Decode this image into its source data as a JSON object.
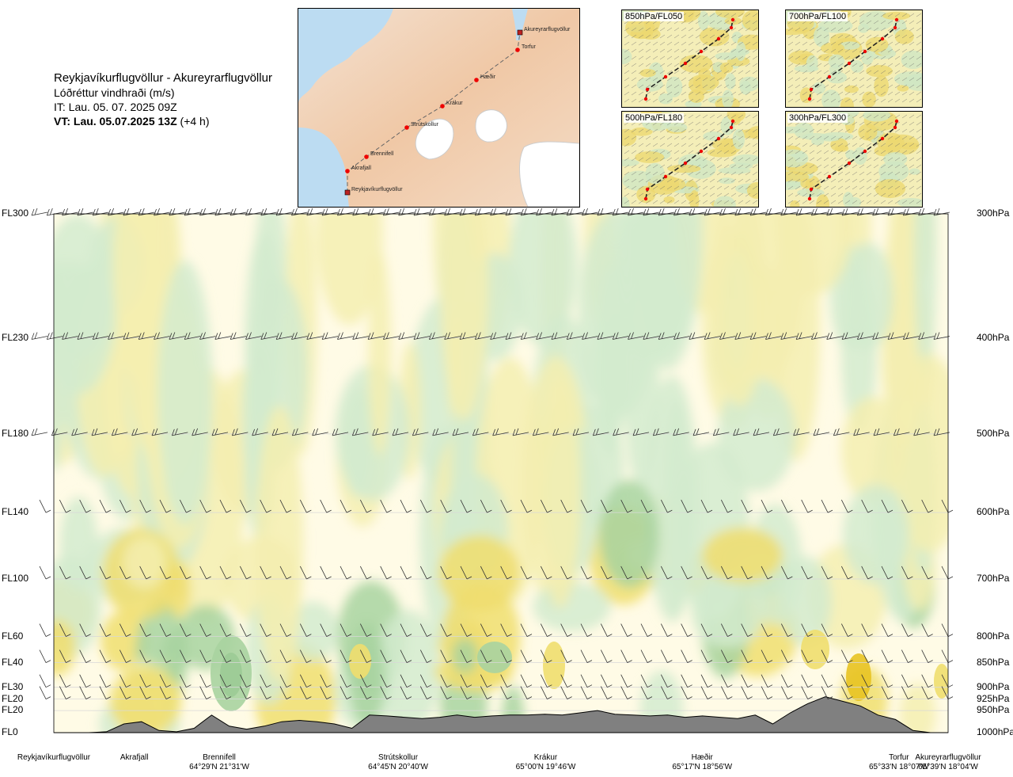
{
  "header": {
    "route": "Reykjavíkurflugvöllur - Akureyrarflugvöllur",
    "variable": "Lóðréttur vindhraði (m/s)",
    "issue_time": "IT: Lau. 05. 07. 2025 09Z",
    "valid_time": "VT: Lau. 05.07.2025 13Z",
    "lead": "(+4 h)"
  },
  "map": {
    "waypoints": [
      "Akureyrarflugvöllur",
      "Torfur",
      "Hæðir",
      "Krákur",
      "Strútskollur",
      "Brennifell",
      "Akrafjall",
      "Reykjavíkurflugvöllur"
    ]
  },
  "mini_maps": [
    {
      "label": "850hPa/FL050"
    },
    {
      "label": "700hPa/FL100"
    },
    {
      "label": "500hPa/FL180"
    },
    {
      "label": "300hPa/FL300"
    }
  ],
  "colors": {
    "up_light": "#f5efb0",
    "up_mid": "#f0de6e",
    "up_strong": "#e8c322",
    "down_light": "#d3ebcf",
    "down_mid": "#a8d3a0",
    "down_strong": "#2e8b3a",
    "terrain": "#808080"
  },
  "chart_data": {
    "type": "heatmap",
    "title": "Reykjavíkurflugvöllur - Akureyrarflugvöllur",
    "variable": "Lóðréttur vindhraði (m/s)",
    "y_levels": [
      {
        "fl": "FL300",
        "hpa": "300hPa"
      },
      {
        "fl": "FL230",
        "hpa": "400hPa"
      },
      {
        "fl": "FL180",
        "hpa": "500hPa"
      },
      {
        "fl": "FL140",
        "hpa": "600hPa"
      },
      {
        "fl": "FL100",
        "hpa": "700hPa"
      },
      {
        "fl": "FL60",
        "hpa": "800hPa"
      },
      {
        "fl": "FL40",
        "hpa": "850hPa"
      },
      {
        "fl": "FL30",
        "hpa": "900hPa"
      },
      {
        "fl": "FL20",
        "hpa": "925hPa"
      },
      {
        "fl": "FL20",
        "hpa": "950hPa"
      },
      {
        "fl": "FL0",
        "hpa": "1000hPa"
      }
    ],
    "x_locations": [
      {
        "name": "Reykjavíkurflugvöllur",
        "coord": ""
      },
      {
        "name": "Akrafjall",
        "coord": ""
      },
      {
        "name": "Brennifell",
        "coord": "64°29'N 21°31'W"
      },
      {
        "name": "Strútskollur",
        "coord": "64°45'N 20°40'W"
      },
      {
        "name": "Krákur",
        "coord": "65°00'N 19°46'W"
      },
      {
        "name": "Hæðir",
        "coord": "65°17'N 18°56'W"
      },
      {
        "name": "Torfur",
        "coord": "65°33'N 18°07'W"
      },
      {
        "name": "Akureyrarflugvöllur",
        "coord": "65°39'N 18°04'W"
      }
    ],
    "x_position_fraction": [
      0.0,
      0.09,
      0.185,
      0.385,
      0.55,
      0.725,
      0.945,
      1.0
    ],
    "y_position_hpa": [
      300,
      400,
      500,
      600,
      700,
      800,
      850,
      900,
      925,
      950,
      1000
    ],
    "terrain_profile_hpa": [
      1000,
      1000,
      1000,
      998,
      980,
      975,
      995,
      998,
      990,
      960,
      985,
      992,
      985,
      975,
      972,
      975,
      980,
      990,
      960,
      962,
      965,
      968,
      965,
      960,
      965,
      962,
      960,
      960,
      958,
      960,
      955,
      950,
      958,
      960,
      962,
      960,
      965,
      962,
      965,
      968,
      960,
      980,
      955,
      935,
      920,
      930,
      940,
      960,
      970,
      995,
      1000,
      1000
    ],
    "legend_position": "none",
    "grid": true
  }
}
